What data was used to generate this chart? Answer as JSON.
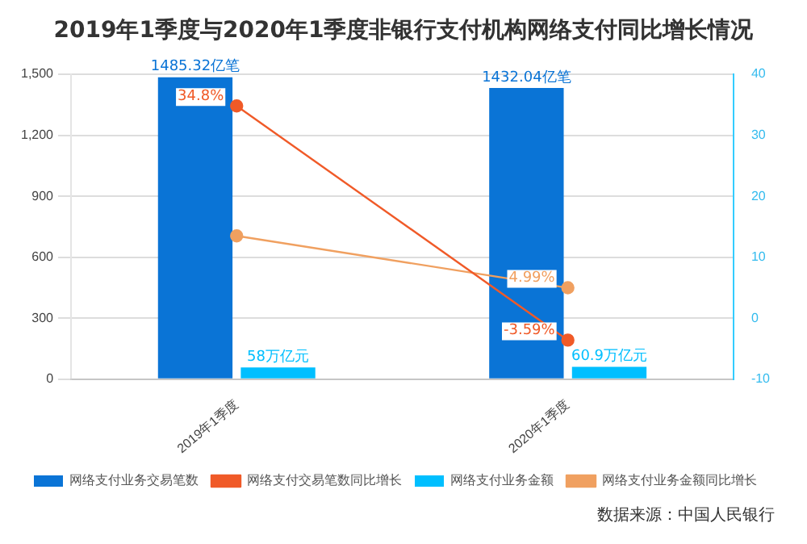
{
  "chart_data": {
    "type": "bar",
    "title": "2019年1季度与2020年1季度非银行支付机构网络支付同比增长情况",
    "categories": [
      "2019年1季度",
      "2020年1季度"
    ],
    "series": [
      {
        "name": "网络支付业务交易笔数",
        "color": "#0a74d6",
        "values": [
          1485.32,
          1432.04
        ],
        "value_labels": [
          "1485.32亿笔",
          "1432.04亿笔"
        ]
      },
      {
        "name": "网络支付交易笔数同比增长",
        "type": "line",
        "axis": "y2",
        "color": "#f05a28",
        "values": [
          34.8,
          -3.59
        ],
        "value_labels": [
          "34.8%",
          "-3.59%"
        ]
      },
      {
        "name": "网络支付业务金额",
        "color": "#00bfff",
        "values": [
          58,
          60.9
        ],
        "value_labels": [
          "58万亿元",
          "60.9万亿元"
        ]
      },
      {
        "name": "网络支付业务金额同比增长",
        "type": "line",
        "axis": "y2",
        "color": "#f0a060",
        "values": [
          13.5,
          4.99
        ],
        "value_labels": [
          null,
          "4.99%"
        ]
      }
    ],
    "ylim": [
      0,
      1500
    ],
    "yticks": [
      0,
      {
        "value": 300,
        "label": "300"
      },
      {
        "value": 600,
        "label": "600"
      },
      {
        "value": 900,
        "label": "900"
      },
      {
        "value": 1200,
        "label": "1,200"
      },
      {
        "value": 1500,
        "label": "1,500"
      }
    ],
    "y2lim": [
      -10,
      40
    ],
    "y2ticks": [
      -10,
      0,
      10,
      20,
      30,
      40
    ],
    "grid": "y",
    "legend": "bottom",
    "marker": "circle",
    "annotations": [
      "数据来源：中国人民银行"
    ]
  }
}
